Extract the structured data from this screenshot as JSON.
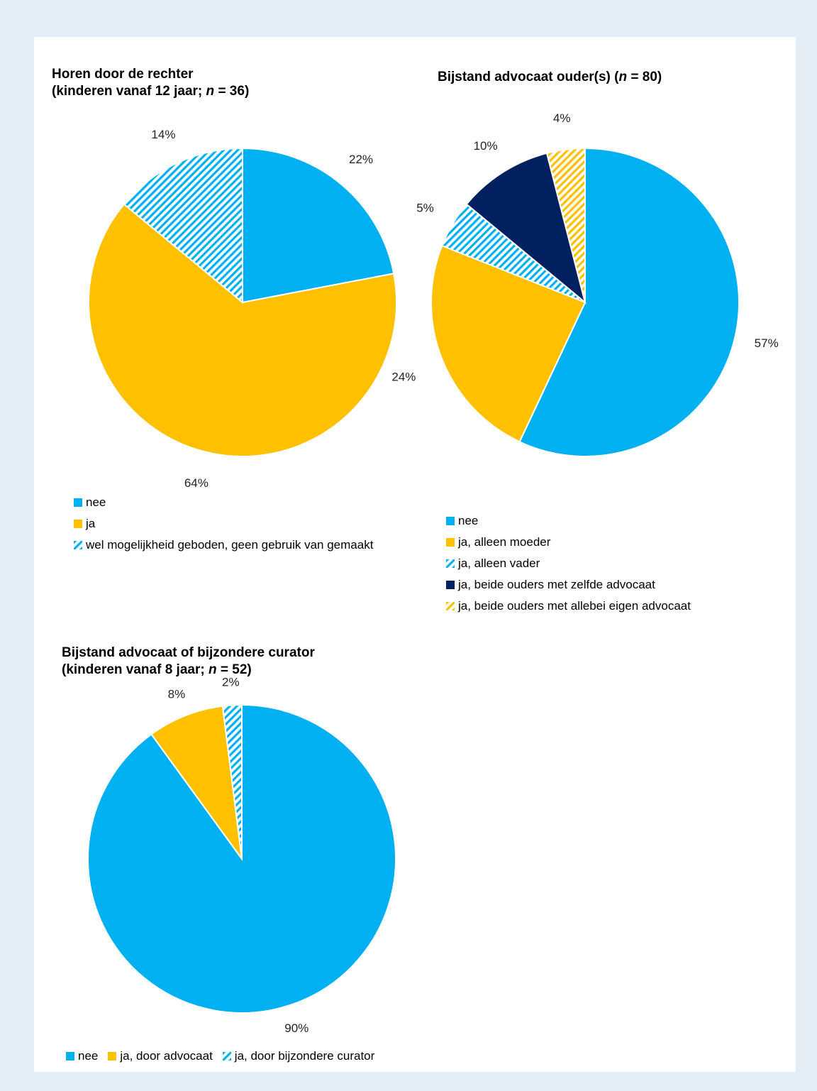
{
  "colors": {
    "blue": "#00b0f0",
    "gold": "#ffc000",
    "navy": "#002060"
  },
  "chart_data": [
    {
      "type": "pie",
      "title": "Horen door de rechter",
      "title_line2": "(kinderen vanaf 12 jaar;",
      "n_label": "n",
      "n_value": "= 36)",
      "slices": [
        {
          "label": "nee",
          "value": 22,
          "value_label": "22%",
          "color": "#00b0f0",
          "pattern": false
        },
        {
          "label": "ja",
          "value": 64,
          "value_label": "64%",
          "color": "#ffc000",
          "pattern": false
        },
        {
          "label": "wel mogelijkheid geboden, geen gebruik van gemaakt",
          "value": 14,
          "value_label": "14%",
          "color": "#00b0f0",
          "pattern": true
        }
      ],
      "legend_position": "bottom"
    },
    {
      "type": "pie",
      "title": "Bijstand advocaat ouder(s) (",
      "n_label": "n",
      "n_value": "= 80)",
      "slices": [
        {
          "label": "nee",
          "value": 57,
          "value_label": "57%",
          "color": "#00b0f0",
          "pattern": false
        },
        {
          "label": "ja, alleen moeder",
          "value": 24,
          "value_label": "24%",
          "color": "#ffc000",
          "pattern": false
        },
        {
          "label": "ja, alleen vader",
          "value": 5,
          "value_label": "5%",
          "color": "#00b0f0",
          "pattern": true
        },
        {
          "label": "ja, beide ouders met zelfde advocaat",
          "value": 10,
          "value_label": "10%",
          "color": "#002060",
          "pattern": false
        },
        {
          "label": "ja, beide ouders met allebei eigen advocaat",
          "value": 4,
          "value_label": "4%",
          "color": "#ffc000",
          "pattern": true
        }
      ],
      "legend_position": "bottom"
    },
    {
      "type": "pie",
      "title": "Bijstand advocaat of bijzondere curator",
      "title_line2": "(kinderen vanaf 8 jaar;",
      "n_label": "n",
      "n_value": "= 52)",
      "slices": [
        {
          "label": "nee",
          "value": 90,
          "value_label": "90%",
          "color": "#00b0f0",
          "pattern": false
        },
        {
          "label": "ja, door advocaat",
          "value": 8,
          "value_label": "8%",
          "color": "#ffc000",
          "pattern": false
        },
        {
          "label": "ja, door bijzondere curator",
          "value": 2,
          "value_label": "2%",
          "color": "#00b0f0",
          "pattern": true
        }
      ],
      "legend_position": "bottom"
    }
  ]
}
